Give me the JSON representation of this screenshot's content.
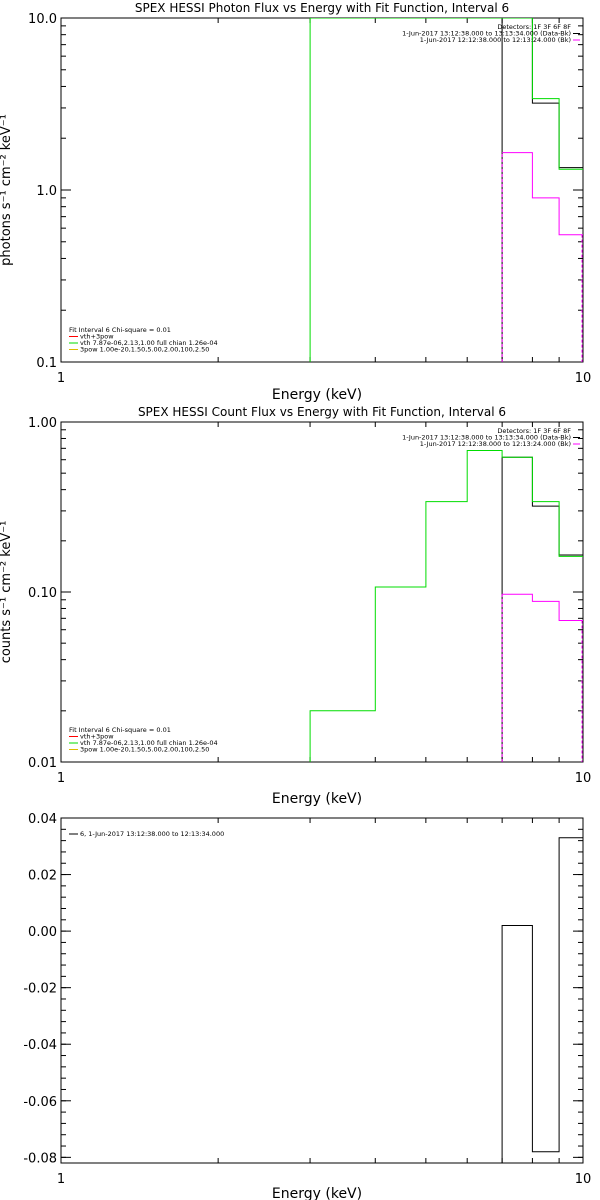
{
  "chart_data": [
    {
      "type": "line",
      "step": true,
      "title": "SPEX HESSI Photon Flux vs Energy with Fit Function, Interval 6",
      "xlabel": "Energy (keV)",
      "ylabel": "photons s⁻¹ cm⁻² keV⁻¹",
      "xscale": "log",
      "yscale": "log",
      "xlim": [
        1,
        10
      ],
      "ylim": [
        0.1,
        10
      ],
      "xticks": [
        1,
        10
      ],
      "xtick_labels": [
        "1",
        "10"
      ],
      "yticks": [
        0.1,
        1,
        10
      ],
      "ytick_labels": [
        "0.1",
        "1.0",
        "10.0"
      ],
      "legend_top": [
        "Detectors: 1F 3F 6F 8F",
        "1-Jun-2017 13:12:38.000 to 13:13:34.000 (Data-Bk)",
        "1-Jun-2017 12:12:38.000 to 12:13:24.000 (Bk)"
      ],
      "legend_top_colors": [
        "",
        "#000000",
        "#ff00ff"
      ],
      "legend_fit": [
        "Fit Interval 6   Chi-square = 0.01",
        "vth+3pow",
        "vth 7.87e-06,2.13,1.00  full chian 1.26e-04",
        "3pow 1.00e-20,1.50,5.00,2.00,100,2.50"
      ],
      "legend_fit_colors": [
        "",
        "#ff0000",
        "#00dd00",
        "#ddbb00"
      ],
      "series": [
        {
          "name": "1-Jun-2017 13:12:38.000 to 13:13:34.000 (Data-Bk)",
          "color": "#000000",
          "drop_start": true,
          "edges": [
            7,
            8,
            9,
            10
          ],
          "values": [
            10.5,
            3.2,
            1.35
          ]
        },
        {
          "name": "1-Jun-2017 12:12:38.000 to 12:13:24.000 (Bk)",
          "color": "#ff00ff",
          "drop_start": true,
          "dashed_start": true,
          "dashed_end": true,
          "edges": [
            7,
            8,
            9,
            10
          ],
          "values": [
            1.65,
            0.9,
            0.55
          ]
        },
        {
          "name": "vth 7.87e-06,2.13,1.00  full chian 1.26e-04",
          "color": "#00dd00",
          "drop_start": true,
          "edges": [
            3,
            7,
            8,
            9,
            10
          ],
          "values": [
            12,
            12,
            3.4,
            1.32
          ]
        }
      ]
    },
    {
      "type": "line",
      "step": true,
      "title": "SPEX HESSI Count Flux vs Energy with Fit Function, Interval 6",
      "xlabel": "Energy (keV)",
      "ylabel": "counts s⁻¹ cm⁻² keV⁻¹",
      "xscale": "log",
      "yscale": "log",
      "xlim": [
        1,
        10
      ],
      "ylim": [
        0.01,
        1
      ],
      "xticks": [
        1,
        10
      ],
      "xtick_labels": [
        "1",
        "10"
      ],
      "yticks": [
        0.01,
        0.1,
        1
      ],
      "ytick_labels": [
        "0.01",
        "0.10",
        "1.00"
      ],
      "legend_top": [
        "Detectors: 1F 3F 6F 8F",
        "1-Jun-2017 13:12:38.000 to 13:13:34.000 (Data-Bk)",
        "1-Jun-2017 12:12:38.000 to 12:13:24.000 (Bk)"
      ],
      "legend_top_colors": [
        "",
        "#000000",
        "#ff00ff"
      ],
      "legend_fit": [
        "Fit Interval 6   Chi-square = 0.01",
        "vth+3pow",
        "vth 7.87e-06,2.13,1.00  full chian 1.26e-04",
        "3pow 1.00e-20,1.50,5.00,2.00,100,2.50"
      ],
      "legend_fit_colors": [
        "",
        "#ff0000",
        "#00dd00",
        "#ddbb00"
      ],
      "series": [
        {
          "name": "1-Jun-2017 13:12:38.000 to 13:13:34.000 (Data-Bk)",
          "color": "#000000",
          "drop_start": true,
          "edges": [
            7,
            8,
            9,
            10
          ],
          "values": [
            0.62,
            0.32,
            0.165
          ]
        },
        {
          "name": "1-Jun-2017 12:12:38.000 to 12:13:24.000 (Bk)",
          "color": "#ff00ff",
          "drop_start": true,
          "dashed_start": true,
          "dashed_end": true,
          "edges": [
            7,
            8,
            9,
            10
          ],
          "values": [
            0.097,
            0.088,
            0.068
          ]
        },
        {
          "name": "vth 7.87e-06,2.13,1.00  full chian 1.26e-04",
          "color": "#00dd00",
          "drop_start": true,
          "edges": [
            3,
            4,
            5,
            6,
            7,
            8,
            9,
            10
          ],
          "values": [
            0.02,
            0.107,
            0.34,
            0.68,
            0.62,
            0.34,
            0.162
          ]
        }
      ]
    },
    {
      "type": "line",
      "step": true,
      "title": "",
      "xlabel": "Energy (keV)",
      "ylabel": "",
      "xscale": "log",
      "yscale": "linear",
      "xlim": [
        1,
        10
      ],
      "ylim": [
        -0.082,
        0.04
      ],
      "xticks": [
        1,
        10
      ],
      "xtick_labels": [
        "1",
        "10"
      ],
      "yticks": [
        -0.08,
        -0.06,
        -0.04,
        -0.02,
        0.0,
        0.02,
        0.04
      ],
      "ytick_labels": [
        "-0.08",
        "-0.06",
        "-0.04",
        "-0.02",
        "0.00",
        "0.02",
        "0.04"
      ],
      "legend_top": [],
      "legend_fit": [
        "6, 1-Jun-2017 13:12:38.000 to 12:13:34.000"
      ],
      "legend_fit_colors": [
        "#000000"
      ],
      "series": [
        {
          "name": "6, 1-Jun-2017 13:12:38.000 to 12:13:34.000",
          "color": "#000000",
          "drop_start": true,
          "drop_end": true,
          "edges": [
            7,
            8,
            9,
            10
          ],
          "values": [
            0.002,
            -0.078,
            0.033
          ]
        }
      ]
    }
  ]
}
